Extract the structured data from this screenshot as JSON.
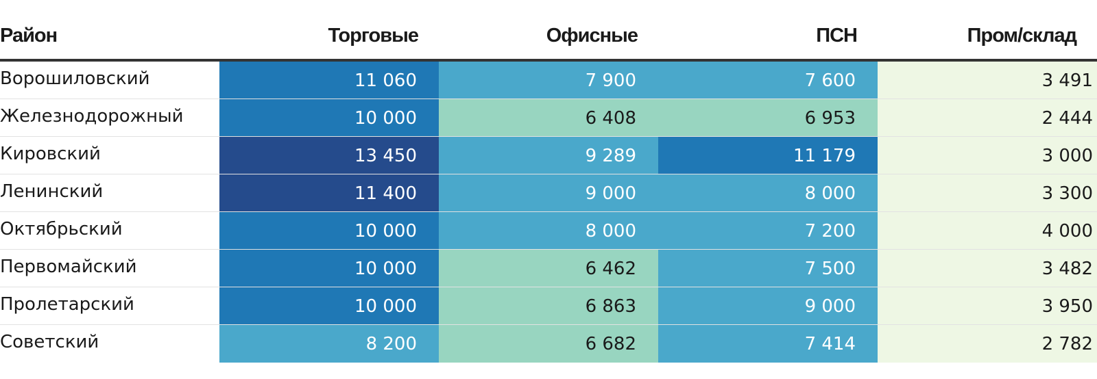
{
  "headers": [
    "Район",
    "Торговые",
    "Офисные",
    "ПСН",
    "Пром/склад"
  ],
  "color_scale": {
    "light": "#eef7e4",
    "teal_light": "#98d5c0",
    "medium": "#4aa8cb",
    "dark": "#1f78b5",
    "darkest": "#254b8c"
  },
  "chart_data": {
    "type": "heatmap",
    "columns": [
      "Район",
      "Торговые",
      "Офисные",
      "ПСН",
      "Пром/склад"
    ],
    "rows": [
      {
        "name": "Ворошиловский",
        "values": [
          "11 060",
          "7 900",
          "7 600",
          "3 491"
        ]
      },
      {
        "name": "Железнодорожный",
        "values": [
          "10 000",
          "6 408",
          "6 953",
          "2 444"
        ]
      },
      {
        "name": "Кировский",
        "values": [
          "13 450",
          "9 289",
          "11 179",
          "3 000"
        ]
      },
      {
        "name": "Ленинский",
        "values": [
          "11 400",
          "9 000",
          "8 000",
          "3 300"
        ]
      },
      {
        "name": "Октябрьский",
        "values": [
          "10 000",
          "8 000",
          "7 200",
          "4 000"
        ]
      },
      {
        "name": "Первомайский",
        "values": [
          "10 000",
          "6 462",
          "7 500",
          "3 482"
        ]
      },
      {
        "name": "Пролетарский",
        "values": [
          "10 000",
          "6 863",
          "9 000",
          "3 950"
        ]
      },
      {
        "name": "Советский",
        "values": [
          "8 200",
          "6 682",
          "7 414",
          "2 782"
        ]
      }
    ]
  }
}
